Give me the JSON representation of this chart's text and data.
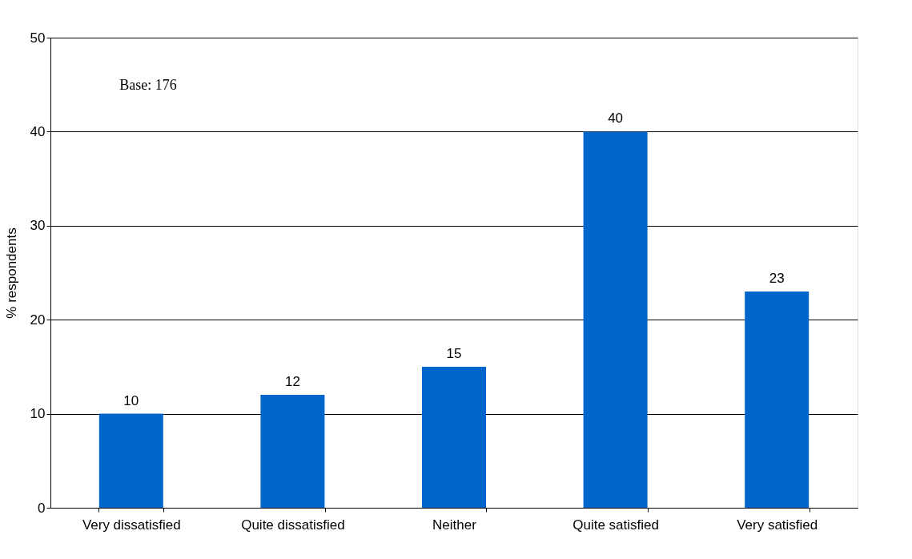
{
  "chart_data": {
    "type": "bar",
    "ylabel": "% respondents",
    "categories": [
      "Very dissatisfied",
      "Quite dissatisfied",
      "Neither",
      "Quite satisfied",
      "Very satisfied"
    ],
    "values": [
      10,
      12,
      15,
      40,
      23
    ],
    "color": "#0066cc",
    "ylim": [
      0,
      50
    ],
    "yticks": [
      0,
      10,
      20,
      30,
      40,
      50
    ],
    "grid": "y",
    "data_labels": true,
    "annotations": [
      "Base: 176"
    ]
  }
}
